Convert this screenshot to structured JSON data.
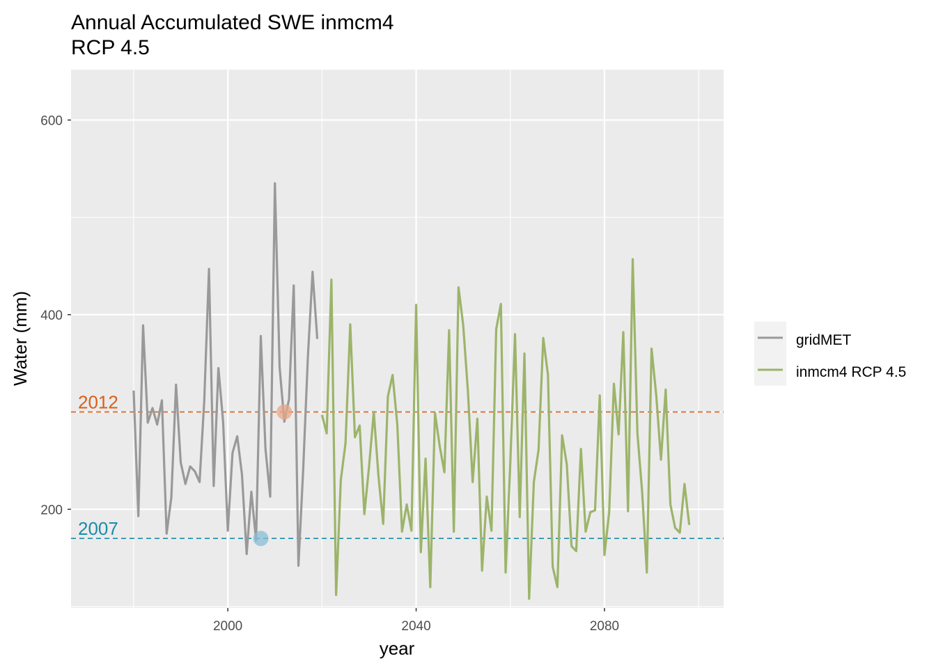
{
  "chart_data": {
    "type": "line",
    "title": "Annual Accumulated SWE inmcm4",
    "subtitle": "RCP 4.5",
    "xlabel": "year",
    "ylabel": "Water (mm)",
    "xlim": [
      1966.7,
      2105.3
    ],
    "ylim": [
      98.6,
      651.8
    ],
    "x_ticks": [
      2000,
      2040,
      2080
    ],
    "y_ticks": [
      200,
      400,
      600
    ],
    "grid": true,
    "legend_position": "right",
    "series": [
      {
        "name": "gridMET",
        "color": "#999999",
        "x": [
          1980,
          1981,
          1982,
          1983,
          1984,
          1985,
          1986,
          1987,
          1988,
          1989,
          1990,
          1991,
          1992,
          1993,
          1994,
          1995,
          1996,
          1997,
          1998,
          1999,
          2000,
          2001,
          2002,
          2003,
          2004,
          2005,
          2006,
          2007,
          2008,
          2009,
          2010,
          2011,
          2012,
          2013,
          2014,
          2015,
          2016,
          2017,
          2018,
          2019
        ],
        "y": [
          322,
          193,
          389,
          289,
          304,
          287,
          312,
          175,
          212,
          328,
          248,
          226,
          244,
          239,
          228,
          312,
          447,
          224,
          345,
          290,
          178,
          258,
          275,
          236,
          154,
          218,
          168,
          378,
          262,
          213,
          535,
          346,
          290,
          313,
          430,
          142,
          240,
          356,
          444,
          375
        ]
      },
      {
        "name": "inmcm4 RCP 4.5",
        "color": "#9CB46A",
        "x": [
          2020,
          2021,
          2022,
          2023,
          2024,
          2025,
          2026,
          2027,
          2028,
          2029,
          2030,
          2031,
          2032,
          2033,
          2034,
          2035,
          2036,
          2037,
          2038,
          2039,
          2040,
          2041,
          2042,
          2043,
          2044,
          2045,
          2046,
          2047,
          2048,
          2049,
          2050,
          2051,
          2052,
          2053,
          2054,
          2055,
          2056,
          2057,
          2058,
          2059,
          2060,
          2061,
          2062,
          2063,
          2064,
          2065,
          2066,
          2067,
          2068,
          2069,
          2070,
          2071,
          2072,
          2073,
          2074,
          2075,
          2076,
          2077,
          2078,
          2079,
          2080,
          2081,
          2082,
          2083,
          2084,
          2085,
          2086,
          2087,
          2088,
          2089,
          2090,
          2091,
          2092,
          2093,
          2094,
          2095,
          2096,
          2097,
          2098,
          2099
        ],
        "y": [
          297,
          278,
          436,
          112,
          230,
          268,
          390,
          274,
          286,
          195,
          244,
          300,
          234,
          185,
          316,
          338,
          287,
          177,
          205,
          178,
          410,
          156,
          252,
          120,
          299,
          265,
          238,
          384,
          177,
          428,
          389,
          321,
          228,
          293,
          137,
          213,
          178,
          385,
          411,
          135,
          248,
          380,
          192,
          360,
          108,
          228,
          261,
          376,
          338,
          141,
          120,
          276,
          246,
          162,
          157,
          262,
          177,
          197,
          199,
          317,
          153,
          197,
          329,
          277,
          382,
          198,
          457,
          278,
          218,
          135,
          365,
          317,
          251,
          323,
          205,
          181,
          176,
          226,
          184,
          null
        ]
      }
    ],
    "reference_lines": [
      {
        "label": "2012",
        "value": 300,
        "color": "#D95F1A"
      },
      {
        "label": "2007",
        "value": 170,
        "color": "#1A8BAA"
      }
    ],
    "highlight_points": [
      {
        "x": 2012,
        "y": 300,
        "color": "#E8A788"
      },
      {
        "x": 2007,
        "y": 170,
        "color": "#87BFD5"
      }
    ]
  },
  "legend": {
    "items": [
      {
        "label": "gridMET",
        "color": "#999999"
      },
      {
        "label": "inmcm4 RCP 4.5",
        "color": "#9CB46A"
      }
    ]
  }
}
